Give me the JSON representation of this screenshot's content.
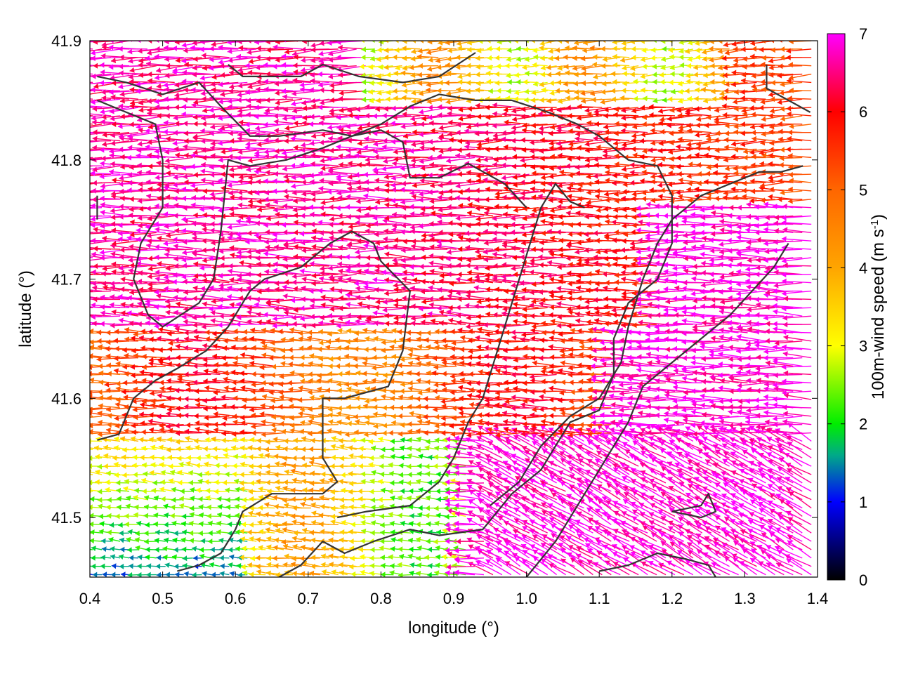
{
  "chart_data": {
    "type": "quiver",
    "title": "",
    "xlabel": "longitude (°)",
    "ylabel": "latitude (°)",
    "colorbar_label_main": "100m-wind speed (m s",
    "colorbar_label_sup": "-1",
    "colorbar_label_end": ")",
    "xlim": [
      0.4,
      1.4
    ],
    "ylim": [
      41.45,
      41.9
    ],
    "xticks": [
      "0.4",
      "0.5",
      "0.6",
      "0.7",
      "0.8",
      "0.9",
      "1.0",
      "1.1",
      "1.2",
      "1.3",
      "1.4"
    ],
    "xtick_values": [
      0.4,
      0.5,
      0.6,
      0.7,
      0.8,
      0.9,
      1.0,
      1.1,
      1.2,
      1.3,
      1.4
    ],
    "yticks": [
      "41.5",
      "41.6",
      "41.7",
      "41.8",
      "41.9"
    ],
    "ytick_values": [
      41.5,
      41.6,
      41.7,
      41.8,
      41.9
    ],
    "color_range": [
      0,
      7
    ],
    "colorbar_ticks": [
      "0",
      "1",
      "2",
      "3",
      "4",
      "5",
      "6",
      "7"
    ],
    "colorbar_tick_values": [
      0,
      1,
      2,
      3,
      4,
      5,
      6,
      7
    ],
    "colormap": [
      [
        0,
        "#000000"
      ],
      [
        1,
        "#0000ff"
      ],
      [
        1.6,
        "#00aa88"
      ],
      [
        2,
        "#00ee00"
      ],
      [
        3,
        "#ffff00"
      ],
      [
        4,
        "#ffa500"
      ],
      [
        5,
        "#ff6600"
      ],
      [
        6,
        "#ff0000"
      ],
      [
        7,
        "#ff00ff"
      ]
    ],
    "boundary_color": "#333333",
    "grid": false,
    "boundaries": [
      [
        [
          0.41,
          41.87
        ],
        [
          0.45,
          41.865
        ],
        [
          0.5,
          41.855
        ],
        [
          0.55,
          41.865
        ],
        [
          0.58,
          41.845
        ],
        [
          0.62,
          41.82
        ],
        [
          0.66,
          41.82
        ],
        [
          0.72,
          41.825
        ],
        [
          0.76,
          41.82
        ],
        [
          0.8,
          41.825
        ],
        [
          0.83,
          41.815
        ],
        [
          0.84,
          41.785
        ],
        [
          0.88,
          41.785
        ],
        [
          0.92,
          41.797
        ],
        [
          0.97,
          41.78
        ],
        [
          1.0,
          41.76
        ]
      ],
      [
        [
          0.41,
          41.85
        ],
        [
          0.45,
          41.84
        ],
        [
          0.49,
          41.83
        ],
        [
          0.5,
          41.8
        ],
        [
          0.5,
          41.76
        ],
        [
          0.47,
          41.73
        ],
        [
          0.46,
          41.7
        ],
        [
          0.48,
          41.67
        ],
        [
          0.5,
          41.66
        ],
        [
          0.55,
          41.68
        ],
        [
          0.57,
          41.7
        ],
        [
          0.58,
          41.74
        ],
        [
          0.59,
          41.8
        ],
        [
          0.62,
          41.795
        ],
        [
          0.67,
          41.8
        ],
        [
          0.72,
          41.81
        ],
        [
          0.76,
          41.82
        ],
        [
          0.8,
          41.83
        ],
        [
          0.84,
          41.845
        ],
        [
          0.88,
          41.855
        ],
        [
          0.93,
          41.85
        ],
        [
          0.98,
          41.85
        ],
        [
          1.03,
          41.84
        ],
        [
          1.07,
          41.83
        ],
        [
          1.1,
          41.82
        ],
        [
          1.14,
          41.8
        ],
        [
          1.18,
          41.795
        ],
        [
          1.2,
          41.77
        ],
        [
          1.2,
          41.73
        ],
        [
          1.18,
          41.7
        ],
        [
          1.14,
          41.68
        ],
        [
          1.12,
          41.65
        ],
        [
          1.12,
          41.62
        ],
        [
          1.1,
          41.59
        ],
        [
          1.06,
          41.58
        ],
        [
          1.04,
          41.56
        ],
        [
          1.02,
          41.54
        ],
        [
          0.98,
          41.52
        ],
        [
          0.94,
          41.49
        ],
        [
          0.88,
          41.485
        ],
        [
          0.84,
          41.49
        ],
        [
          0.79,
          41.48
        ],
        [
          0.75,
          41.47
        ],
        [
          0.72,
          41.48
        ],
        [
          0.69,
          41.46
        ],
        [
          0.66,
          41.45
        ]
      ],
      [
        [
          0.41,
          41.565
        ],
        [
          0.44,
          41.57
        ],
        [
          0.46,
          41.6
        ],
        [
          0.49,
          41.615
        ],
        [
          0.52,
          41.625
        ],
        [
          0.56,
          41.64
        ],
        [
          0.59,
          41.66
        ],
        [
          0.62,
          41.69
        ],
        [
          0.64,
          41.7
        ],
        [
          0.69,
          41.71
        ],
        [
          0.73,
          41.73
        ],
        [
          0.76,
          41.74
        ],
        [
          0.79,
          41.73
        ],
        [
          0.8,
          41.715
        ],
        [
          0.84,
          41.69
        ],
        [
          0.83,
          41.64
        ],
        [
          0.81,
          41.61
        ],
        [
          0.75,
          41.6
        ],
        [
          0.72,
          41.6
        ],
        [
          0.72,
          41.58
        ],
        [
          0.72,
          41.55
        ],
        [
          0.74,
          41.53
        ],
        [
          0.72,
          41.52
        ],
        [
          0.68,
          41.52
        ],
        [
          0.65,
          41.52
        ],
        [
          0.61,
          41.505
        ],
        [
          0.6,
          41.49
        ],
        [
          0.58,
          41.47
        ],
        [
          0.55,
          41.46
        ],
        [
          0.52,
          41.455
        ]
      ],
      [
        [
          0.74,
          41.5
        ],
        [
          0.78,
          41.505
        ],
        [
          0.84,
          41.51
        ],
        [
          0.88,
          41.53
        ],
        [
          0.9,
          41.55
        ],
        [
          0.92,
          41.58
        ],
        [
          0.94,
          41.6
        ],
        [
          0.96,
          41.64
        ],
        [
          0.98,
          41.68
        ],
        [
          1.0,
          41.72
        ],
        [
          1.02,
          41.76
        ],
        [
          1.04,
          41.78
        ],
        [
          1.06,
          41.765
        ],
        [
          1.08,
          41.76
        ]
      ],
      [
        [
          0.95,
          41.51
        ],
        [
          0.99,
          41.53
        ],
        [
          1.02,
          41.56
        ],
        [
          1.06,
          41.585
        ],
        [
          1.1,
          41.6
        ],
        [
          1.13,
          41.63
        ],
        [
          1.14,
          41.66
        ],
        [
          1.16,
          41.7
        ],
        [
          1.18,
          41.73
        ],
        [
          1.2,
          41.75
        ],
        [
          1.24,
          41.77
        ],
        [
          1.28,
          41.78
        ],
        [
          1.32,
          41.79
        ],
        [
          1.35,
          41.79
        ],
        [
          1.38,
          41.795
        ]
      ],
      [
        [
          1.0,
          41.45
        ],
        [
          1.04,
          41.48
        ],
        [
          1.08,
          41.52
        ],
        [
          1.11,
          41.55
        ],
        [
          1.14,
          41.58
        ],
        [
          1.16,
          41.61
        ],
        [
          1.2,
          41.63
        ],
        [
          1.24,
          41.65
        ],
        [
          1.28,
          41.67
        ],
        [
          1.31,
          41.69
        ],
        [
          1.34,
          41.71
        ],
        [
          1.36,
          41.73
        ]
      ],
      [
        [
          1.1,
          41.455
        ],
        [
          1.14,
          41.46
        ],
        [
          1.18,
          41.47
        ],
        [
          1.22,
          41.465
        ],
        [
          1.25,
          41.46
        ],
        [
          1.26,
          41.45
        ]
      ],
      [
        [
          1.2,
          41.505
        ],
        [
          1.24,
          41.51
        ],
        [
          1.25,
          41.52
        ],
        [
          1.26,
          41.505
        ],
        [
          1.24,
          41.5
        ],
        [
          1.2,
          41.505
        ]
      ],
      [
        [
          1.33,
          41.88
        ],
        [
          1.33,
          41.86
        ],
        [
          1.36,
          41.85
        ],
        [
          1.39,
          41.84
        ]
      ],
      [
        [
          0.59,
          41.88
        ],
        [
          0.61,
          41.87
        ],
        [
          0.64,
          41.87
        ],
        [
          0.69,
          41.87
        ],
        [
          0.72,
          41.88
        ],
        [
          0.77,
          41.87
        ],
        [
          0.83,
          41.865
        ],
        [
          0.88,
          41.87
        ],
        [
          0.93,
          41.89
        ]
      ],
      [
        [
          0.41,
          41.77
        ],
        [
          0.41,
          41.75
        ]
      ]
    ]
  }
}
